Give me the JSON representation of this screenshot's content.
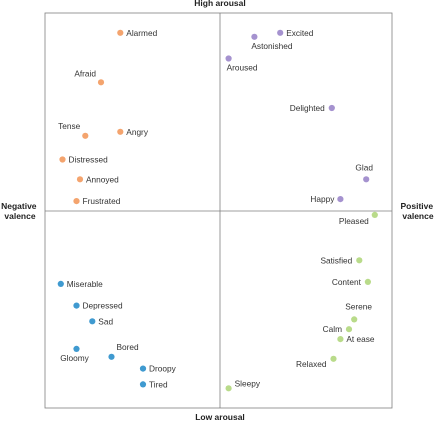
{
  "chart_data": {
    "type": "scatter",
    "title": "",
    "axes": {
      "top_label": "High arousal",
      "bottom_label": "Low arousal",
      "left_label": [
        "Negative",
        "valence"
      ],
      "right_label": [
        "Positive",
        "valence"
      ],
      "xlim": [
        -1,
        1
      ],
      "ylim": [
        -1,
        1
      ],
      "grid": false,
      "quadrant_lines": true
    },
    "colors": {
      "orange": "#F4A46E",
      "purple": "#A592CF",
      "green": "#B9DB8A",
      "blue": "#3F9AD0",
      "frame": "#7F7F7F",
      "text": "#333333"
    },
    "series": [
      {
        "color": "orange",
        "points": [
          {
            "label": "Alarmed",
            "x": -0.57,
            "y": 0.9
          },
          {
            "label": "Afraid",
            "x": -0.68,
            "y": 0.65
          },
          {
            "label": "Tense",
            "x": -0.77,
            "y": 0.38
          },
          {
            "label": "Angry",
            "x": -0.57,
            "y": 0.4
          },
          {
            "label": "Distressed",
            "x": -0.9,
            "y": 0.26
          },
          {
            "label": "Annoyed",
            "x": -0.8,
            "y": 0.16
          },
          {
            "label": "Frustrated",
            "x": -0.82,
            "y": 0.05
          }
        ]
      },
      {
        "color": "purple",
        "points": [
          {
            "label": "Excited",
            "x": 0.35,
            "y": 0.9
          },
          {
            "label": "Astonished",
            "x": 0.2,
            "y": 0.88
          },
          {
            "label": "Aroused",
            "x": 0.05,
            "y": 0.77
          },
          {
            "label": "Delighted",
            "x": 0.65,
            "y": 0.52
          },
          {
            "label": "Glad",
            "x": 0.85,
            "y": 0.16
          },
          {
            "label": "Happy",
            "x": 0.7,
            "y": 0.06
          }
        ]
      },
      {
        "color": "green",
        "points": [
          {
            "label": "Pleased",
            "x": 0.9,
            "y": -0.02
          },
          {
            "label": "Satisfied",
            "x": 0.81,
            "y": -0.25
          },
          {
            "label": "Content",
            "x": 0.86,
            "y": -0.36
          },
          {
            "label": "Serene",
            "x": 0.78,
            "y": -0.55
          },
          {
            "label": "Calm",
            "x": 0.75,
            "y": -0.6
          },
          {
            "label": "At ease",
            "x": 0.7,
            "y": -0.65
          },
          {
            "label": "Relaxed",
            "x": 0.66,
            "y": -0.75
          },
          {
            "label": "Sleepy",
            "x": 0.05,
            "y": -0.9
          }
        ]
      },
      {
        "color": "blue",
        "points": [
          {
            "label": "Miserable",
            "x": -0.91,
            "y": -0.37
          },
          {
            "label": "Depressed",
            "x": -0.82,
            "y": -0.48
          },
          {
            "label": "Sad",
            "x": -0.73,
            "y": -0.56
          },
          {
            "label": "Gloomy",
            "x": -0.82,
            "y": -0.7
          },
          {
            "label": "Bored",
            "x": -0.62,
            "y": -0.74
          },
          {
            "label": "Droopy",
            "x": -0.44,
            "y": -0.8
          },
          {
            "label": "Tired",
            "x": -0.44,
            "y": -0.88
          }
        ]
      }
    ]
  }
}
